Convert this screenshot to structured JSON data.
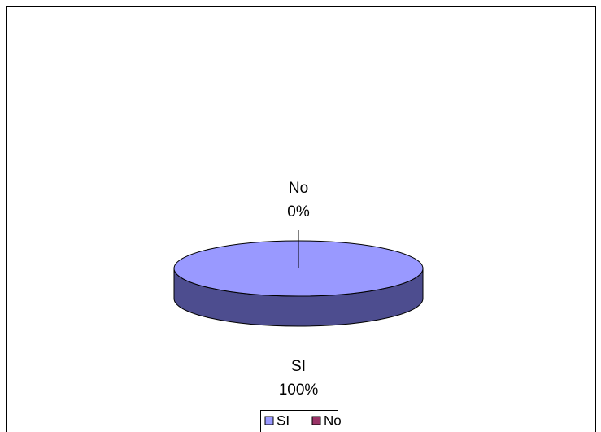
{
  "chart_data": {
    "type": "pie3d",
    "categories": [
      "SI",
      "No"
    ],
    "values": [
      100,
      0
    ],
    "value_labels": [
      "100%",
      "0%"
    ],
    "colors": [
      "#9999ff",
      "#993366"
    ],
    "side_color": "#4d4d8f",
    "legend": "bottom"
  }
}
